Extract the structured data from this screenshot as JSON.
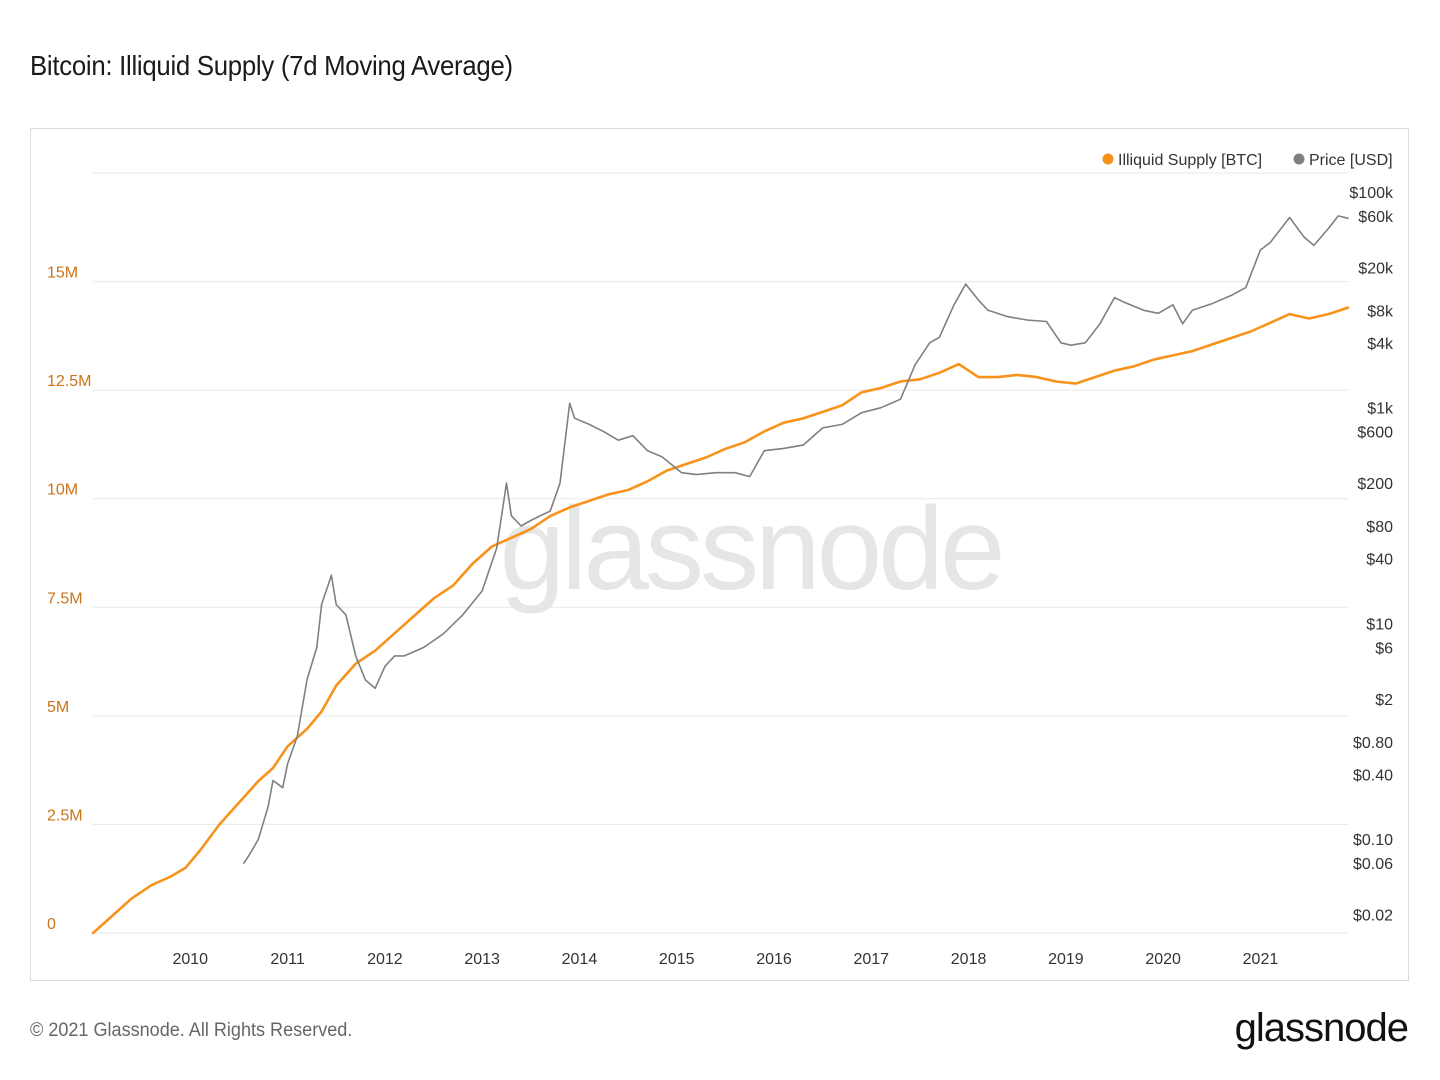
{
  "page": {
    "title": "Bitcoin: Illiquid Supply (7d Moving Average)",
    "copyright": "© 2021 Glassnode. All Rights Reserved.",
    "logo_text": "glassnode",
    "watermark": "glassnode"
  },
  "colors": {
    "illiquid": "#f7931a",
    "price": "#808080",
    "grid": "#e8e8e8",
    "left_axis": "#c9741a"
  },
  "chart_data": {
    "type": "line",
    "title": "Bitcoin: Illiquid Supply (7d Moving Average)",
    "legend": [
      {
        "label": "Illiquid Supply [BTC]",
        "color": "#f7931a"
      },
      {
        "label": "Price [USD]",
        "color": "#808080"
      }
    ],
    "legend_position": "top-right",
    "x_ticks": [
      "2010",
      "2011",
      "2012",
      "2013",
      "2014",
      "2015",
      "2016",
      "2017",
      "2018",
      "2019",
      "2020",
      "2021"
    ],
    "x_range": [
      2009.0,
      2021.9
    ],
    "left_axis": {
      "label": "Illiquid Supply [BTC]",
      "ticks": [
        {
          "label": "0",
          "value": 0
        },
        {
          "label": "2.5M",
          "value": 2500000
        },
        {
          "label": "5M",
          "value": 5000000
        },
        {
          "label": "7.5M",
          "value": 7500000
        },
        {
          "label": "10M",
          "value": 10000000
        },
        {
          "label": "12.5M",
          "value": 12500000
        },
        {
          "label": "15M",
          "value": 15000000
        }
      ],
      "range": [
        0,
        17500000
      ]
    },
    "right_axis": {
      "label": "Price [USD]",
      "scale": "log",
      "ticks": [
        {
          "label": "$0.02",
          "value": 0.02
        },
        {
          "label": "$0.06",
          "value": 0.06
        },
        {
          "label": "$0.10",
          "value": 0.1
        },
        {
          "label": "$0.40",
          "value": 0.4
        },
        {
          "label": "$0.80",
          "value": 0.8
        },
        {
          "label": "$2",
          "value": 2
        },
        {
          "label": "$6",
          "value": 6
        },
        {
          "label": "$10",
          "value": 10
        },
        {
          "label": "$40",
          "value": 40
        },
        {
          "label": "$80",
          "value": 80
        },
        {
          "label": "$200",
          "value": 200
        },
        {
          "label": "$600",
          "value": 600
        },
        {
          "label": "$1k",
          "value": 1000
        },
        {
          "label": "$4k",
          "value": 4000
        },
        {
          "label": "$8k",
          "value": 8000
        },
        {
          "label": "$20k",
          "value": 20000
        },
        {
          "label": "$60k",
          "value": 60000
        },
        {
          "label": "$100k",
          "value": 100000
        }
      ]
    },
    "series": [
      {
        "name": "Illiquid Supply [BTC]",
        "axis": "left",
        "x": [
          2009.0,
          2009.2,
          2009.4,
          2009.6,
          2009.8,
          2009.95,
          2010.1,
          2010.3,
          2010.5,
          2010.7,
          2010.85,
          2011.0,
          2011.2,
          2011.35,
          2011.5,
          2011.7,
          2011.9,
          2012.1,
          2012.3,
          2012.5,
          2012.7,
          2012.9,
          2013.1,
          2013.3,
          2013.5,
          2013.7,
          2013.9,
          2014.1,
          2014.3,
          2014.5,
          2014.7,
          2014.9,
          2015.1,
          2015.3,
          2015.5,
          2015.7,
          2015.9,
          2016.1,
          2016.3,
          2016.5,
          2016.7,
          2016.9,
          2017.1,
          2017.3,
          2017.5,
          2017.7,
          2017.9,
          2018.1,
          2018.3,
          2018.5,
          2018.7,
          2018.9,
          2019.1,
          2019.3,
          2019.5,
          2019.7,
          2019.9,
          2020.1,
          2020.3,
          2020.5,
          2020.7,
          2020.9,
          2021.1,
          2021.3,
          2021.5,
          2021.7,
          2021.9
        ],
        "values": [
          0,
          400000,
          800000,
          1100000,
          1300000,
          1500000,
          1900000,
          2500000,
          3000000,
          3500000,
          3800000,
          4300000,
          4700000,
          5100000,
          5700000,
          6200000,
          6500000,
          6900000,
          7300000,
          7700000,
          8000000,
          8500000,
          8900000,
          9100000,
          9300000,
          9600000,
          9800000,
          9950000,
          10100000,
          10200000,
          10400000,
          10650000,
          10800000,
          10950000,
          11150000,
          11300000,
          11550000,
          11750000,
          11850000,
          12000000,
          12150000,
          12450000,
          12550000,
          12700000,
          12750000,
          12900000,
          13100000,
          12800000,
          12800000,
          12850000,
          12800000,
          12700000,
          12650000,
          12800000,
          12950000,
          13050000,
          13200000,
          13300000,
          13400000,
          13550000,
          13700000,
          13850000,
          14050000,
          14250000,
          14150000,
          14250000,
          14400000
        ]
      },
      {
        "name": "Price [USD]",
        "axis": "right",
        "x": [
          2010.55,
          2010.6,
          2010.7,
          2010.8,
          2010.85,
          2010.95,
          2011.0,
          2011.1,
          2011.2,
          2011.3,
          2011.35,
          2011.45,
          2011.5,
          2011.6,
          2011.7,
          2011.8,
          2011.9,
          2012.0,
          2012.1,
          2012.2,
          2012.4,
          2012.6,
          2012.8,
          2013.0,
          2013.15,
          2013.25,
          2013.3,
          2013.4,
          2013.5,
          2013.6,
          2013.7,
          2013.8,
          2013.9,
          2013.95,
          2014.1,
          2014.25,
          2014.4,
          2014.55,
          2014.7,
          2014.85,
          2015.05,
          2015.2,
          2015.4,
          2015.6,
          2015.75,
          2015.9,
          2016.1,
          2016.3,
          2016.5,
          2016.7,
          2016.9,
          2017.1,
          2017.3,
          2017.45,
          2017.6,
          2017.7,
          2017.85,
          2017.97,
          2018.1,
          2018.2,
          2018.4,
          2018.6,
          2018.8,
          2018.95,
          2019.05,
          2019.2,
          2019.35,
          2019.5,
          2019.6,
          2019.8,
          2019.95,
          2020.1,
          2020.2,
          2020.3,
          2020.5,
          2020.7,
          2020.85,
          2021.0,
          2021.1,
          2021.3,
          2021.45,
          2021.55,
          2021.7,
          2021.8,
          2021.9
        ],
        "values": [
          0.06,
          0.07,
          0.1,
          0.2,
          0.35,
          0.3,
          0.5,
          0.9,
          3,
          6,
          15,
          28,
          15,
          12,
          5,
          3,
          2.5,
          4,
          5,
          5,
          6,
          8,
          12,
          20,
          50,
          200,
          100,
          80,
          90,
          100,
          110,
          200,
          1100,
          800,
          700,
          600,
          500,
          550,
          400,
          350,
          250,
          240,
          250,
          250,
          230,
          400,
          420,
          450,
          650,
          700,
          900,
          1000,
          1200,
          2500,
          4000,
          4500,
          9000,
          14000,
          10000,
          8000,
          7000,
          6500,
          6300,
          4000,
          3800,
          4000,
          6000,
          10500,
          9500,
          8000,
          7500,
          9000,
          6000,
          8000,
          9200,
          11000,
          13000,
          29000,
          34000,
          58000,
          38000,
          32000,
          46000,
          60000,
          57000
        ]
      }
    ]
  }
}
